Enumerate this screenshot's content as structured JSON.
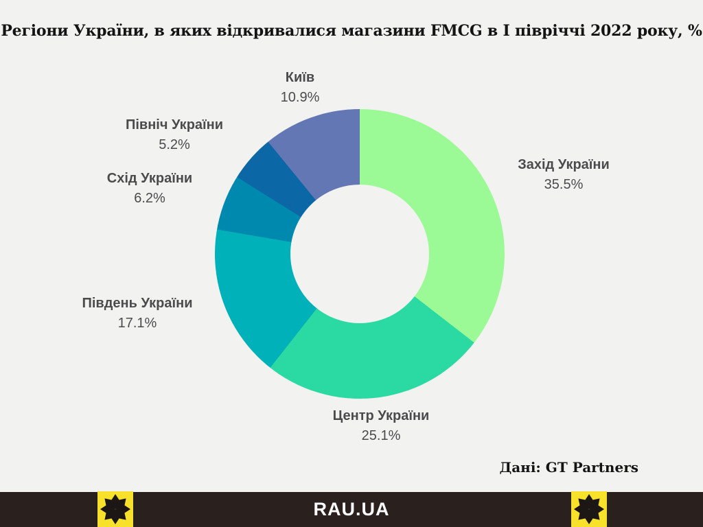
{
  "page": {
    "background": "#f2f2f1"
  },
  "title": "Регіони України, в яких відкривалися магазини FMCG в І півріччі 2022 року, %",
  "source_note": "Дані: GT Partners",
  "footer": {
    "brand": "RAU.UA",
    "bar_color": "#2a211f",
    "accent_color": "#f8e12b",
    "star_icon": "eight-pointed-star"
  },
  "chart_data": {
    "type": "pie",
    "subtype": "donut",
    "title": "Регіони України, в яких відкривалися магазини FMCG в І півріччі 2022 року, %",
    "unit": "%",
    "start_angle_deg": 0,
    "direction": "clockwise",
    "hole_ratio": 0.48,
    "legend_position": "outside-labels",
    "segments": [
      {
        "label": "Захід України",
        "value": 35.5,
        "pct_label": "35.5%",
        "color": "#9bfa95"
      },
      {
        "label": "Центр України",
        "value": 25.1,
        "pct_label": "25.1%",
        "color": "#2bd9a2"
      },
      {
        "label": "Південь України",
        "value": 17.1,
        "pct_label": "17.1%",
        "color": "#00b1ba"
      },
      {
        "label": "Схід України",
        "value": 6.2,
        "pct_label": "6.2%",
        "color": "#0089ae"
      },
      {
        "label": "Північ України",
        "value": 5.2,
        "pct_label": "5.2%",
        "color": "#0b67a6"
      },
      {
        "label": "Київ",
        "value": 10.9,
        "pct_label": "10.9%",
        "color": "#6377b5"
      }
    ]
  }
}
